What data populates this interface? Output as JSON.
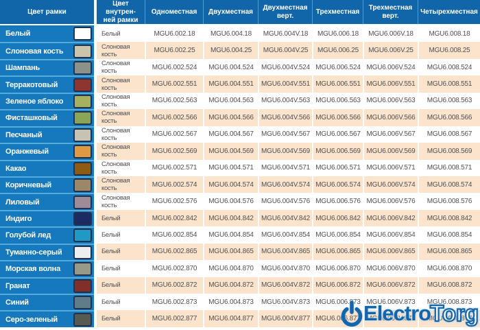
{
  "table": {
    "header": [
      "Цвет рамки",
      "Цвет внутрен-\nней рамки",
      "Одноместная",
      "Двухместная",
      "Двухместная\nверт.",
      "Трехместная",
      "Трехместная\nверт.",
      "Четырехместная"
    ],
    "rows": [
      {
        "frame_color": "Белый",
        "swatch": "#ffffff",
        "inner_color": "Белый",
        "codes": [
          "MGU6.002.18",
          "MGU6.004.18",
          "MGU6.004V.18",
          "MGU6.006.18",
          "MGU6.006V.18",
          "MGU6.008.18"
        ]
      },
      {
        "frame_color": "Слоновая кость",
        "swatch": "#cbc4ad",
        "inner_color": "Слоновая кость",
        "codes": [
          "MGU6.002.25",
          "MGU6.004.25",
          "MGU6.004V.25",
          "MGU6.006.25",
          "MGU6.006V.25",
          "MGU6.008.25"
        ]
      },
      {
        "frame_color": "Шампань",
        "swatch": "#8b9289",
        "inner_color": "Слоновая кость",
        "codes": [
          "MGU6.002.524",
          "MGU6.004.524",
          "MGU6.004V.524",
          "MGU6.006.524",
          "MGU6.006V.524",
          "MGU6.008.524"
        ]
      },
      {
        "frame_color": "Терракотовый",
        "swatch": "#8e3531",
        "inner_color": "Слоновая кость",
        "codes": [
          "MGU6.002.551",
          "MGU6.004.551",
          "MGU6.004V.551",
          "MGU6.006.551",
          "MGU6.006V.551",
          "MGU6.008.551"
        ]
      },
      {
        "frame_color": "Зеленое яблоко",
        "swatch": "#a4b161",
        "inner_color": "Слоновая кость",
        "codes": [
          "MGU6.002.563",
          "MGU6.004.563",
          "MGU6.004V.563",
          "MGU6.006.563",
          "MGU6.006V.563",
          "MGU6.008.563"
        ]
      },
      {
        "frame_color": "Фисташковый",
        "swatch": "#8ba558",
        "inner_color": "Слоновая кость",
        "codes": [
          "MGU6.002.566",
          "MGU6.004.566",
          "MGU6.004V.566",
          "MGU6.006.566",
          "MGU6.006V.566",
          "MGU6.008.566"
        ]
      },
      {
        "frame_color": "Песчаный",
        "swatch": "#c7c3b3",
        "inner_color": "Слоновая кость",
        "codes": [
          "MGU6.002.567",
          "MGU6.004.567",
          "MGU6.004V.567",
          "MGU6.006.567",
          "MGU6.006V.567",
          "MGU6.008.567"
        ]
      },
      {
        "frame_color": "Оранжевый",
        "swatch": "#de9a40",
        "inner_color": "Слоновая кость",
        "codes": [
          "MGU6.002.569",
          "MGU6.004.569",
          "MGU6.004V.569",
          "MGU6.006.569",
          "MGU6.006V.569",
          "MGU6.008.569"
        ]
      },
      {
        "frame_color": "Какао",
        "swatch": "#8d5c12",
        "inner_color": "Слоновая кость",
        "codes": [
          "MGU6.002.571",
          "MGU6.004.571",
          "MGU6.004V.571",
          "MGU6.006.571",
          "MGU6.006V.571",
          "MGU6.008.571"
        ]
      },
      {
        "frame_color": "Коричневый",
        "swatch": "#9c8768",
        "inner_color": "Слоновая кость",
        "codes": [
          "MGU6.002.574",
          "MGU6.004.574",
          "MGU6.004V.574",
          "MGU6.006.574",
          "MGU6.006V.574",
          "MGU6.008.574"
        ]
      },
      {
        "frame_color": "Лиловый",
        "swatch": "#9d8b97",
        "inner_color": "Слоновая кость",
        "codes": [
          "MGU6.002.576",
          "MGU6.004.576",
          "MGU6.004V.576",
          "MGU6.006.576",
          "MGU6.006V.576",
          "MGU6.008.576"
        ]
      },
      {
        "frame_color": "Индиго",
        "swatch": "#1d2b64",
        "inner_color": "Белый",
        "codes": [
          "MGU6.002.842",
          "MGU6.004.842",
          "MGU6.004V.842",
          "MGU6.006.842",
          "MGU6.006V.842",
          "MGU6.008.842"
        ]
      },
      {
        "frame_color": "Голубой лед",
        "swatch": "#1f9ac4",
        "inner_color": "Белый",
        "codes": [
          "MGU6.002.854",
          "MGU6.004.854",
          "MGU6.004V.854",
          "MGU6.006.854",
          "MGU6.006V.854",
          "MGU6.008.854"
        ]
      },
      {
        "frame_color": "Туманно-серый",
        "swatch": "#eceef0",
        "inner_color": "Белый",
        "codes": [
          "MGU6.002.865",
          "MGU6.004.865",
          "MGU6.004V.865",
          "MGU6.006.865",
          "MGU6.006V.865",
          "MGU6.008.865"
        ]
      },
      {
        "frame_color": "Морская волна",
        "swatch": "#979a88",
        "inner_color": "Белый",
        "codes": [
          "MGU6.002.870",
          "MGU6.004.870",
          "MGU6.004V.870",
          "MGU6.006.870",
          "MGU6.006V.870",
          "MGU6.008.870"
        ]
      },
      {
        "frame_color": "Гранат",
        "swatch": "#822e29",
        "inner_color": "Белый",
        "codes": [
          "MGU6.002.872",
          "MGU6.004.872",
          "MGU6.004V.872",
          "MGU6.006.872",
          "MGU6.006V.872",
          "MGU6.008.872"
        ]
      },
      {
        "frame_color": "Синий",
        "swatch": "#5e7d89",
        "inner_color": "Белый",
        "codes": [
          "MGU6.002.873",
          "MGU6.004.873",
          "MGU6.004V.873",
          "MGU6.006.873",
          "MGU6.006V.873",
          "MGU6.008.873"
        ]
      },
      {
        "frame_color": "Серо-зеленый",
        "swatch": "#565a50",
        "inner_color": "Белый",
        "codes": [
          "MGU6.002.877",
          "MGU6.004.877",
          "MGU6.004V.877",
          "MGU6.006.877",
          "MGU6.006V.877",
          "MGU6.008.877"
        ]
      }
    ]
  },
  "watermark": {
    "brand_solid": "Electro",
    "brand_outline": "Torg",
    "icon": "power-icon",
    "color": "#1565ac"
  },
  "colors": {
    "header_bg": "#1166a9",
    "left_column_bg": "#1779bd",
    "row_alt_bg": "#fbe3cc",
    "row_bg": "#ffffff",
    "separator_light_blue": "#55abd9",
    "data_text": "#4f5052"
  }
}
